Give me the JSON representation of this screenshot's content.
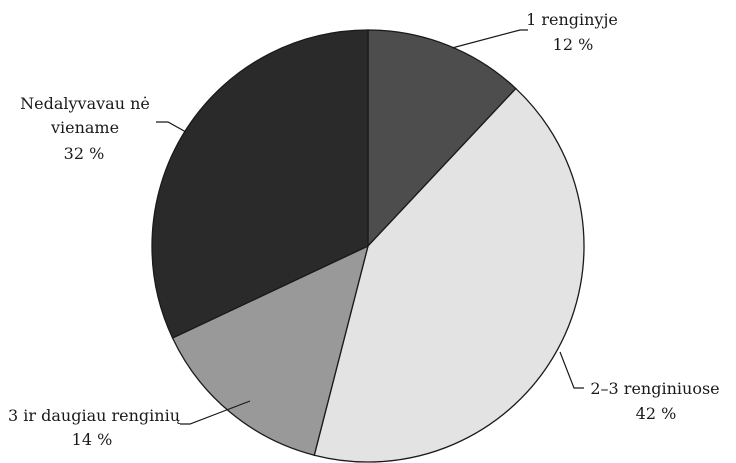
{
  "chart_data": {
    "type": "pie",
    "slices": [
      {
        "label": "1 renginyje",
        "value": 12,
        "value_label": "12 %",
        "color": "#4d4d4d"
      },
      {
        "label": "2–3 renginiuose",
        "value": 42,
        "value_label": "42 %",
        "color": "#e3e3e3"
      },
      {
        "label": "3 ir daugiau renginių",
        "value": 14,
        "value_label": "14 %",
        "color": "#999999"
      },
      {
        "label_lines": [
          "Nedalyvavau nė",
          "viename"
        ],
        "value": 32,
        "value_label": "32 %",
        "color": "#2a2a2a"
      }
    ]
  }
}
